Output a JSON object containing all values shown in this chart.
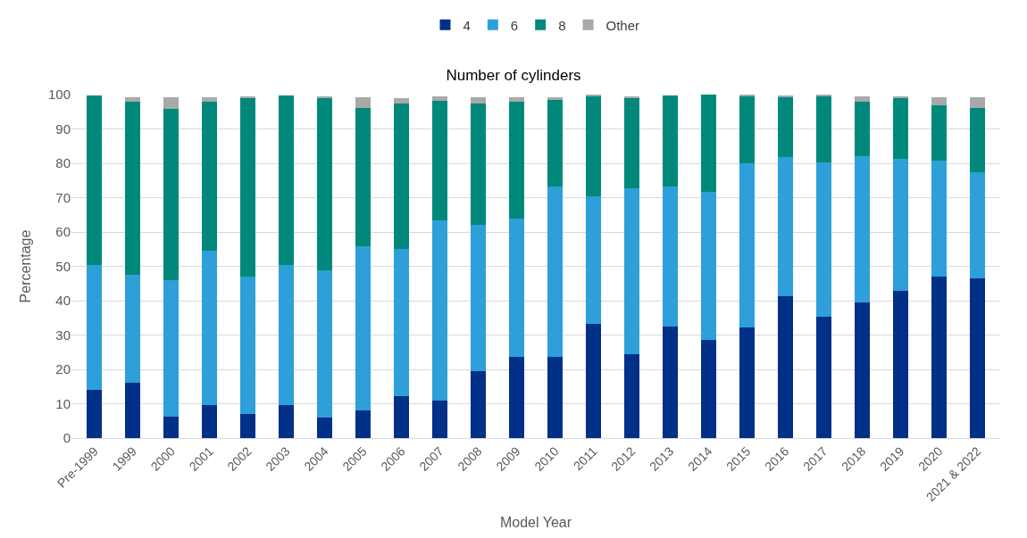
{
  "chart_data": {
    "type": "bar",
    "stacked": true,
    "title": "Number of cylinders",
    "xlabel": "Model Year",
    "ylabel": "Percentage",
    "categories": [
      "Pre-1999",
      "1999",
      "2000",
      "2001",
      "2002",
      "2003",
      "2004",
      "2005",
      "2006",
      "2007",
      "2008",
      "2009",
      "2010",
      "2011",
      "2012",
      "2013",
      "2014",
      "2015",
      "2016",
      "2017",
      "2018",
      "2019",
      "2020",
      "2021 & 2022"
    ],
    "series": [
      {
        "name": "4",
        "color": "#003087",
        "values": [
          14,
          16,
          6.3,
          9.6,
          7,
          9.6,
          6,
          8,
          12.3,
          11,
          19.5,
          23.7,
          23.7,
          33.2,
          24.3,
          32.5,
          28.6,
          32.3,
          41.2,
          35.3,
          39.4,
          42.8,
          47,
          46.4
        ]
      },
      {
        "name": "6",
        "color": "#2e9fd9",
        "values": [
          36.3,
          31.6,
          39.7,
          45,
          40,
          40.7,
          42.8,
          47.8,
          42.7,
          52.5,
          42.5,
          40.3,
          49.5,
          37.1,
          48.5,
          40.8,
          43.2,
          47.7,
          40.5,
          45,
          42.6,
          38.4,
          33.9,
          31.1
        ]
      },
      {
        "name": "8",
        "color": "#00897b",
        "values": [
          49.5,
          50.4,
          49.8,
          43.4,
          52,
          49.5,
          50.2,
          40.2,
          42.5,
          34.7,
          35.5,
          34,
          25.3,
          29.4,
          26.4,
          26.5,
          28.2,
          19.7,
          17.7,
          19.3,
          16,
          18,
          15.9,
          18.7
        ]
      },
      {
        "name": "Other",
        "color": "#a9a9a9",
        "values": [
          null,
          1.2,
          3.5,
          1.2,
          0.5,
          null,
          0.5,
          3.3,
          1.5,
          1.2,
          1.8,
          1.2,
          0.8,
          0.2,
          0.4,
          null,
          0,
          0.2,
          0.3,
          0.3,
          1.5,
          0.4,
          2.5,
          3
        ]
      }
    ],
    "ylim": [
      0,
      100
    ],
    "yticks": [
      0,
      10,
      20,
      30,
      40,
      50,
      60,
      70,
      80,
      90,
      100
    ],
    "grid": "y",
    "legend": "top"
  }
}
